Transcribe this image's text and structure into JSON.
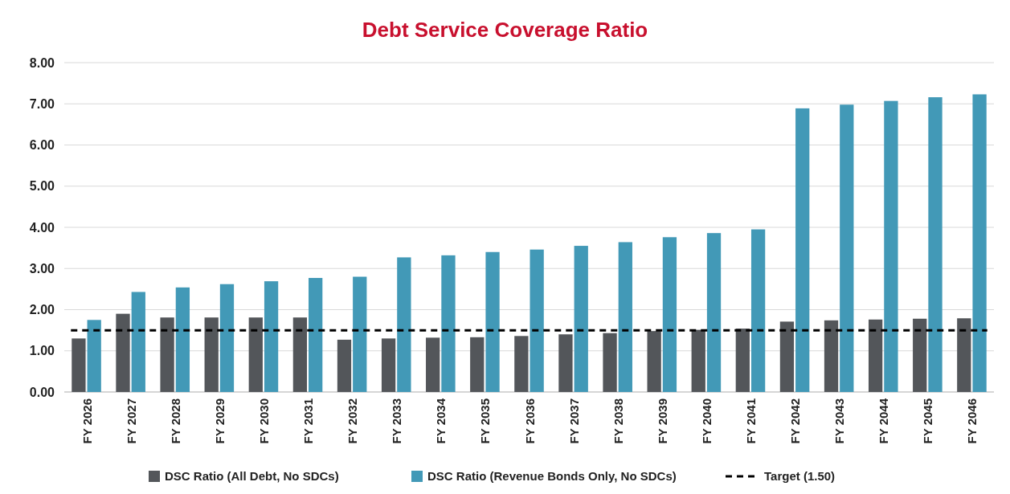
{
  "chart_data": {
    "type": "bar",
    "title": "Debt Service Coverage Ratio",
    "categories": [
      "FY 2026",
      "FY 2027",
      "FY 2028",
      "FY 2029",
      "FY 2030",
      "FY 2031",
      "FY 2032",
      "FY 2033",
      "FY 2034",
      "FY 2035",
      "FY 2036",
      "FY 2037",
      "FY 2038",
      "FY 2039",
      "FY 2040",
      "FY 2041",
      "FY 2042",
      "FY 2043",
      "FY 2044",
      "FY 2045",
      "FY 2046"
    ],
    "series": [
      {
        "name": "DSC Ratio (All Debt, No SDCs)",
        "color": "#53565a",
        "values": [
          1.3,
          1.9,
          1.81,
          1.81,
          1.81,
          1.81,
          1.27,
          1.3,
          1.32,
          1.33,
          1.36,
          1.4,
          1.43,
          1.48,
          1.51,
          1.54,
          1.71,
          1.74,
          1.76,
          1.78,
          1.79
        ]
      },
      {
        "name": "DSC Ratio (Revenue Bonds Only, No SDCs)",
        "color": "#4299b7",
        "values": [
          1.75,
          2.43,
          2.54,
          2.62,
          2.69,
          2.77,
          2.8,
          3.27,
          3.32,
          3.4,
          3.46,
          3.55,
          3.64,
          3.76,
          3.86,
          3.95,
          6.89,
          6.98,
          7.07,
          7.16,
          7.23
        ]
      }
    ],
    "ref_lines": [
      {
        "axis": "y",
        "value": 1.5,
        "label": "Target (1.50)",
        "color": "#000000",
        "line_style": "dashed"
      }
    ],
    "ylim": [
      0,
      8
    ],
    "yticks": [
      {
        "value": 0,
        "label": "0.00"
      },
      {
        "value": 1,
        "label": "1.00"
      },
      {
        "value": 2,
        "label": "2.00"
      },
      {
        "value": 3,
        "label": "3.00"
      },
      {
        "value": 4,
        "label": "4.00"
      },
      {
        "value": 5,
        "label": "5.00"
      },
      {
        "value": 6,
        "label": "6.00"
      },
      {
        "value": 7,
        "label": "7.00"
      },
      {
        "value": 8,
        "label": "8.00"
      }
    ],
    "grid": "y",
    "legend": "bottom"
  }
}
